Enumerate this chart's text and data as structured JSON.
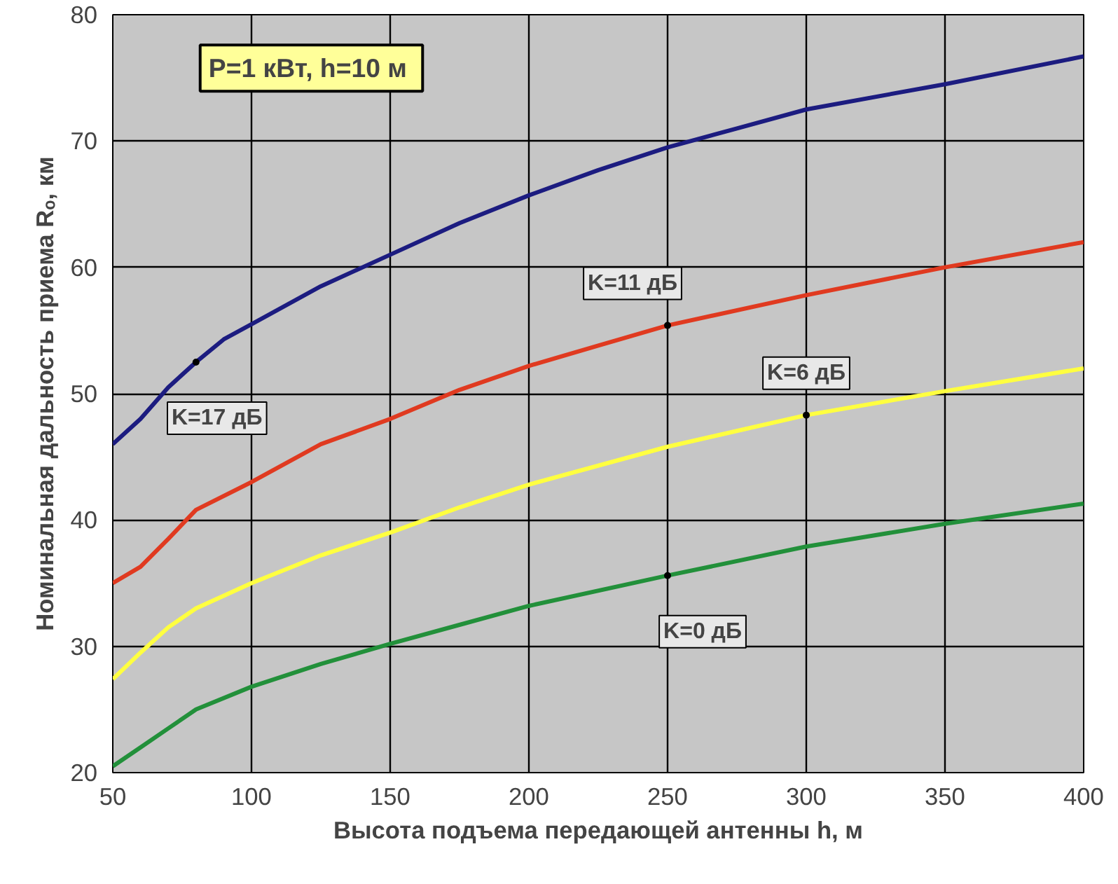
{
  "chart_data": {
    "type": "line",
    "title": "P=1 кВт,  h=10 м",
    "xlabel": "Высота подъема передающей антенны h, м",
    "ylabel": "Номинальная дальность приема Rₒ, км",
    "xlim": [
      50,
      400
    ],
    "xticks": [
      50,
      100,
      150,
      200,
      250,
      300,
      350,
      400
    ],
    "ylim": [
      20,
      80
    ],
    "yticks": [
      20,
      30,
      40,
      50,
      60,
      70,
      80
    ],
    "grid": true,
    "marker": "none",
    "line_style": "solid",
    "series": [
      {
        "name": "K=17 дБ",
        "color": "#1c1c80",
        "x": [
          50,
          60,
          70,
          80,
          90,
          100,
          125,
          150,
          175,
          200,
          225,
          250,
          275,
          300,
          350,
          400
        ],
        "values": [
          46,
          48,
          50.5,
          52.5,
          54.3,
          55.5,
          58.5,
          61,
          63.5,
          65.7,
          67.7,
          69.5,
          71,
          72.5,
          74.5,
          76.7
        ]
      },
      {
        "name": "K=11 дБ",
        "color": "#e03a20",
        "x": [
          50,
          60,
          70,
          80,
          100,
          125,
          140,
          150,
          175,
          200,
          225,
          250,
          300,
          350,
          400
        ],
        "values": [
          35,
          36.3,
          38.5,
          40.8,
          43,
          46,
          47.2,
          48,
          50.3,
          52.2,
          53.8,
          55.4,
          57.8,
          60,
          62
        ]
      },
      {
        "name": "K=6 дБ",
        "color": "#ffff40",
        "x": [
          50,
          60,
          70,
          80,
          100,
          125,
          150,
          175,
          200,
          250,
          300,
          350,
          400
        ],
        "values": [
          27.4,
          29.5,
          31.5,
          33,
          35,
          37.2,
          39,
          41,
          42.8,
          45.8,
          48.3,
          50.2,
          52
        ]
      },
      {
        "name": "K=0 дБ",
        "color": "#22903a",
        "x": [
          50,
          60,
          70,
          80,
          100,
          125,
          150,
          175,
          200,
          250,
          300,
          350,
          400
        ],
        "values": [
          20.5,
          22,
          23.5,
          25,
          26.8,
          28.6,
          30.2,
          31.7,
          33.2,
          35.6,
          37.9,
          39.7,
          41.3
        ]
      }
    ]
  }
}
